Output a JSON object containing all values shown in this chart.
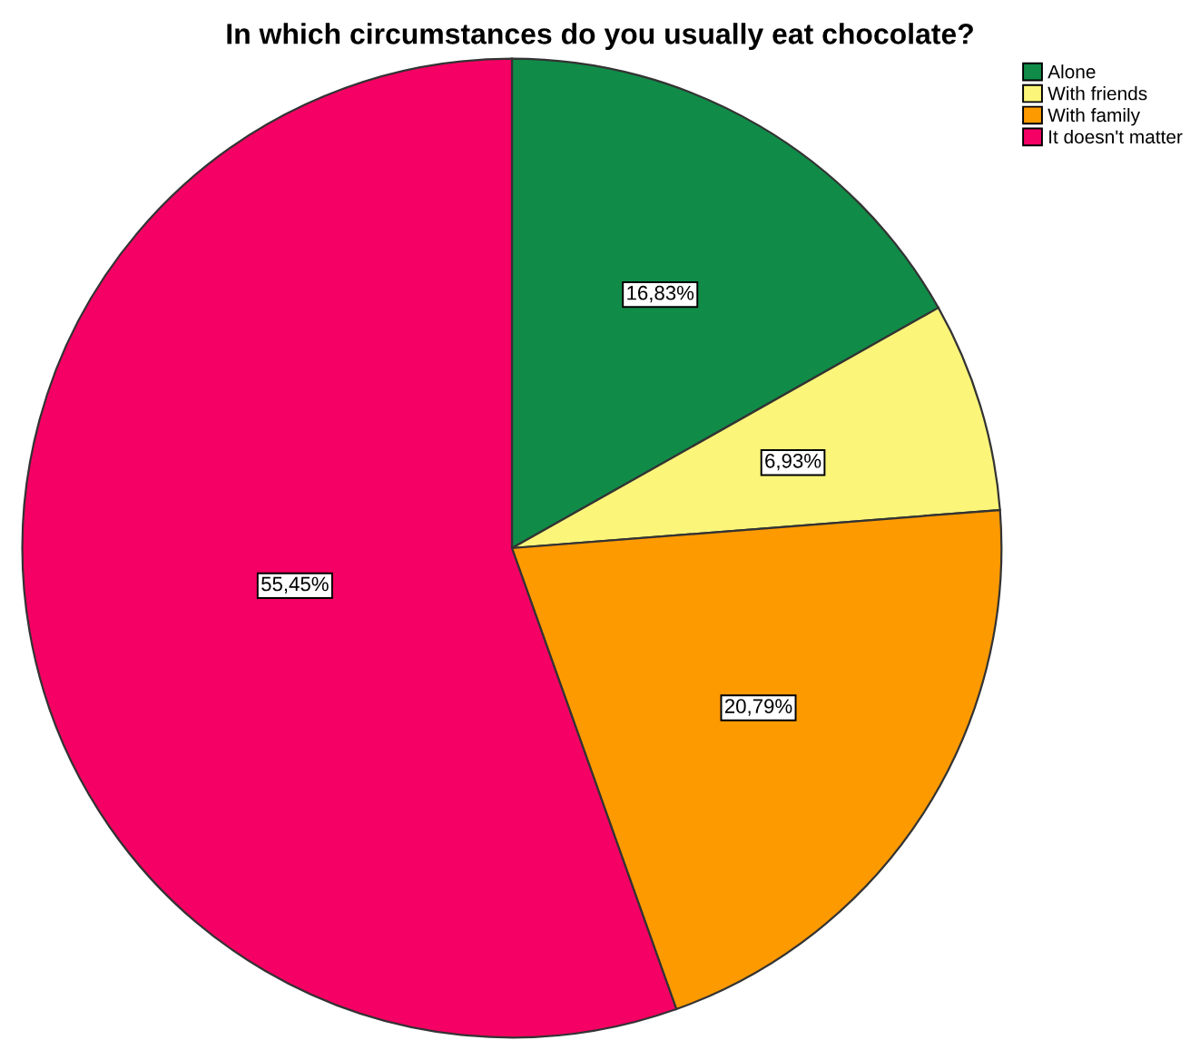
{
  "chart_data": {
    "type": "pie",
    "title": "In which circumstances do you usually eat chocolate?",
    "categories": [
      "Alone",
      "With friends",
      "With family",
      "It doesn't matter"
    ],
    "values": [
      16.83,
      6.93,
      20.79,
      55.45
    ],
    "colors": [
      "#108c48",
      "#fbf67a",
      "#fd9a00",
      "#f50064"
    ],
    "value_labels": [
      "16,83%",
      "6,93%",
      "20,79%",
      "55,45%"
    ],
    "legend": "top right"
  }
}
